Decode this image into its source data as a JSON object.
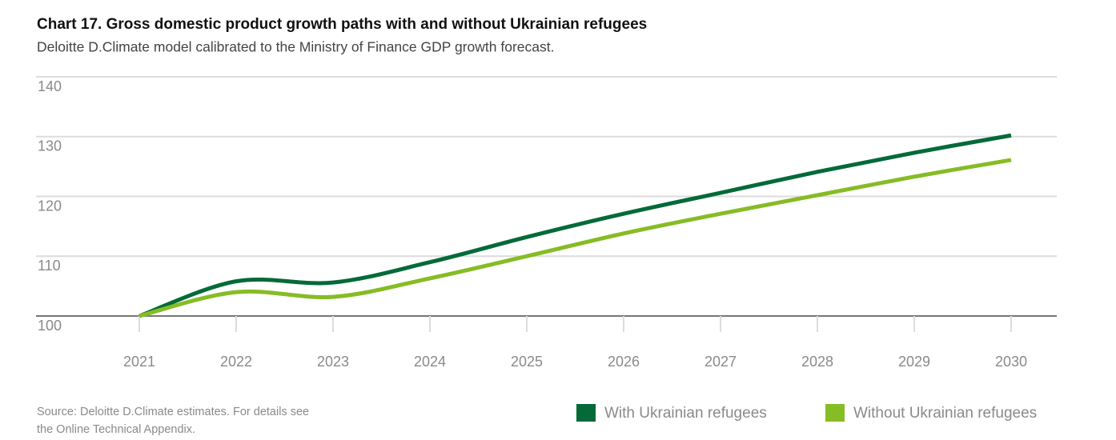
{
  "chart_data": {
    "type": "line",
    "title": "Chart 17. Gross domestic product growth paths with and without Ukrainian refugees",
    "subtitle": "Deloitte D.Climate model calibrated to the Ministry of Finance GDP growth forecast.",
    "source": [
      "Source: Deloitte D.Climate estimates. For details see",
      "the Online Technical Appendix."
    ],
    "categories": [
      "2021",
      "2022",
      "2023",
      "2024",
      "2025",
      "2026",
      "2027",
      "2028",
      "2029",
      "2030"
    ],
    "series": [
      {
        "name": "With Ukrainian refugees",
        "color": "#046a38",
        "values": [
          100,
          105.8,
          105.6,
          109.0,
          113.2,
          117.1,
          120.6,
          124.1,
          127.3,
          130.2
        ]
      },
      {
        "name": "Without Ukrainian refugees",
        "color": "#86bc25",
        "values": [
          100,
          104.0,
          103.2,
          106.3,
          110.0,
          113.8,
          117.1,
          120.2,
          123.3,
          126.1
        ]
      }
    ],
    "ylim": [
      100,
      140
    ],
    "yticks": [
      100,
      110,
      120,
      130,
      140
    ],
    "grid": true,
    "legend": "bottom-right"
  }
}
